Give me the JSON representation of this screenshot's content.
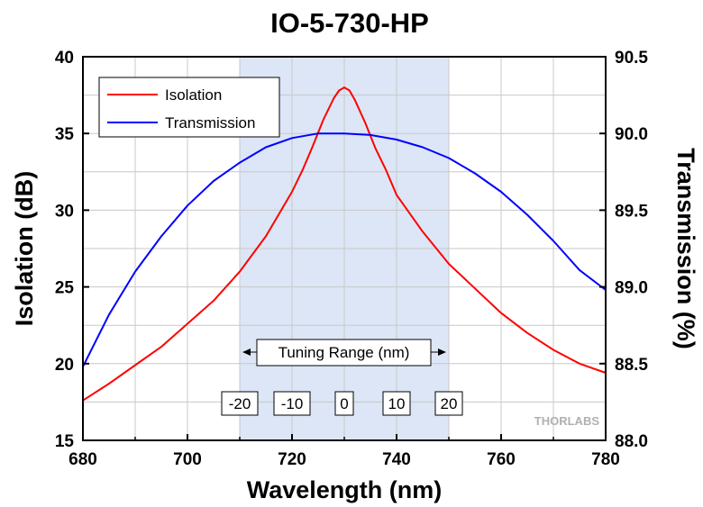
{
  "chart_data": {
    "type": "line",
    "title": "IO-5-730-HP",
    "xlabel": "Wavelength (nm)",
    "ylabel": "Isolation (dB)",
    "y2label": "Transmission (%)",
    "xlim": [
      680,
      780
    ],
    "ylim": [
      15,
      40
    ],
    "y2lim": [
      88.0,
      90.5
    ],
    "xticks": [
      680,
      700,
      720,
      740,
      760,
      780
    ],
    "yticks": [
      15,
      20,
      25,
      30,
      35,
      40
    ],
    "y2ticks": [
      "88.0",
      "88.5",
      "89.0",
      "89.5",
      "90.0",
      "90.5"
    ],
    "grid": true,
    "legend_position": "top-left",
    "series": [
      {
        "name": "Isolation",
        "axis": "left",
        "color": "#ff0000",
        "x": [
          680,
          685,
          690,
          695,
          700,
          705,
          710,
          715,
          720,
          722,
          724,
          726,
          728,
          729,
          730,
          731,
          732,
          734,
          736,
          738,
          740,
          745,
          750,
          755,
          760,
          765,
          770,
          775,
          780
        ],
        "y": [
          17.6,
          18.7,
          19.9,
          21.1,
          22.6,
          24.1,
          26.0,
          28.3,
          31.2,
          32.6,
          34.2,
          35.9,
          37.3,
          37.8,
          38.0,
          37.8,
          37.2,
          35.7,
          34.0,
          32.6,
          31.0,
          28.6,
          26.5,
          24.9,
          23.3,
          22.0,
          20.9,
          20.0,
          19.4
        ]
      },
      {
        "name": "Transmission",
        "axis": "right",
        "color": "#0000ff",
        "x": [
          680,
          685,
          690,
          695,
          700,
          705,
          710,
          715,
          720,
          725,
          730,
          735,
          740,
          745,
          750,
          755,
          760,
          765,
          770,
          775,
          780
        ],
        "y": [
          88.48,
          88.82,
          89.1,
          89.33,
          89.53,
          89.69,
          89.81,
          89.91,
          89.97,
          90.0,
          90.0,
          89.99,
          89.96,
          89.91,
          89.84,
          89.74,
          89.62,
          89.47,
          89.3,
          89.11,
          88.98
        ]
      }
    ],
    "shaded_region": {
      "x": [
        710,
        750
      ],
      "color": "#dce6f6",
      "label": "Tuning Range (nm)"
    },
    "tuning_labels": [
      {
        "x": 710,
        "text": "-20"
      },
      {
        "x": 720,
        "text": "-10"
      },
      {
        "x": 730,
        "text": "0"
      },
      {
        "x": 740,
        "text": "10"
      },
      {
        "x": 750,
        "text": "20"
      }
    ],
    "watermark": "THORLABS"
  }
}
